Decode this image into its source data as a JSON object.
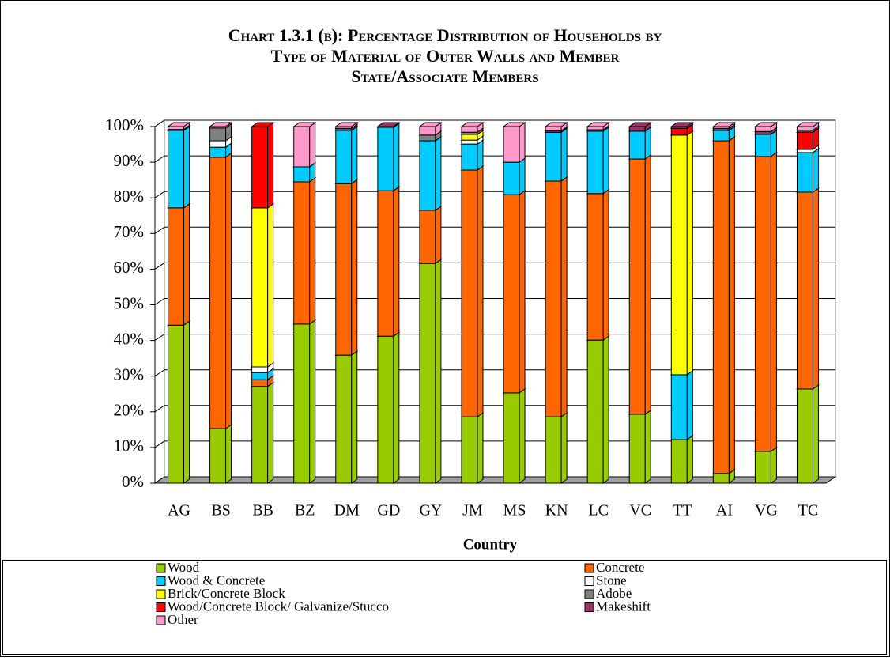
{
  "chart_data": {
    "type": "stacked_bar",
    "title": [
      "Chart 1.3.1 (b): Percentage Distribution of Households by",
      "Type of Material of Outer Walls and Member",
      "State/Associate Members"
    ],
    "x_label": "Country",
    "categories": [
      "AG",
      "BS",
      "BB",
      "BZ",
      "DM",
      "GD",
      "GY",
      "JM",
      "MS",
      "KN",
      "LC",
      "VC",
      "TT",
      "AI",
      "VG",
      "TC"
    ],
    "series": [
      {
        "name": "Wood",
        "color": "#99cc00",
        "values": [
          44.3,
          15.3,
          27.1,
          44.6,
          35.9,
          41.2,
          61.6,
          18.6,
          25.3,
          18.6,
          40.1,
          19.3,
          12.2,
          2.7,
          8.9,
          26.4
        ]
      },
      {
        "name": "Concrete",
        "color": "#ff6600",
        "values": [
          32.9,
          76.1,
          1.9,
          39.9,
          48.1,
          40.8,
          14.9,
          69.2,
          55.6,
          66.1,
          41.1,
          71.6,
          0,
          93.3,
          82.7,
          55.2
        ]
      },
      {
        "name": "Wood & Concrete",
        "color": "#00ccff",
        "values": [
          21.7,
          2.8,
          2.0,
          4.2,
          14.9,
          17.8,
          19.5,
          7.3,
          9.1,
          13.7,
          17.5,
          7.8,
          18.2,
          2.9,
          6.2,
          11.1
        ]
      },
      {
        "name": "Stone",
        "color": "#ffffff",
        "values": [
          0,
          1.8,
          1.6,
          0,
          0,
          0,
          0,
          1.1,
          0,
          0,
          0,
          0,
          0,
          0,
          0,
          0.9
        ]
      },
      {
        "name": "Brick/Concrete Block",
        "color": "#ffff00",
        "values": [
          0,
          0,
          44.6,
          0,
          0,
          0,
          0,
          1.6,
          0,
          0,
          0,
          0,
          67.2,
          0,
          0,
          0
        ]
      },
      {
        "name": "Adobe",
        "color": "#808080",
        "values": [
          0,
          3.6,
          0,
          0,
          0,
          0,
          1.6,
          0.6,
          0,
          0,
          0,
          0,
          0,
          0,
          0,
          0
        ]
      },
      {
        "name": "Wood/Concrete Block/ Galvanize/Stucco",
        "color": "#ff0000",
        "values": [
          0,
          0,
          22.8,
          0,
          0,
          0,
          0,
          0,
          0,
          0,
          0,
          0,
          1.9,
          0,
          0,
          4.8
        ]
      },
      {
        "name": "Makeshift",
        "color": "#993366",
        "values": [
          0.3,
          0,
          0,
          0,
          0.6,
          0.2,
          0,
          0,
          0,
          0.4,
          0.4,
          1.3,
          0.5,
          0.6,
          0.8,
          0.6
        ]
      },
      {
        "name": "Other",
        "color": "#ff99cc",
        "values": [
          0.8,
          0.4,
          0,
          11.3,
          0.5,
          0,
          2.4,
          1.6,
          10,
          1.2,
          0.9,
          0,
          0,
          0.5,
          1.4,
          1.0
        ]
      }
    ],
    "ylim": [
      0,
      100
    ],
    "yticks": [
      {
        "value": 0,
        "label": "0%"
      },
      {
        "value": 10,
        "label": "10%"
      },
      {
        "value": 20,
        "label": "20%"
      },
      {
        "value": 30,
        "label": "30%"
      },
      {
        "value": 40,
        "label": "40%"
      },
      {
        "value": 50,
        "label": "50%"
      },
      {
        "value": 60,
        "label": "60%"
      },
      {
        "value": 70,
        "label": "70%"
      },
      {
        "value": 80,
        "label": "80%"
      },
      {
        "value": 90,
        "label": "90%"
      },
      {
        "value": 100,
        "label": "100%"
      }
    ],
    "grid": true
  }
}
